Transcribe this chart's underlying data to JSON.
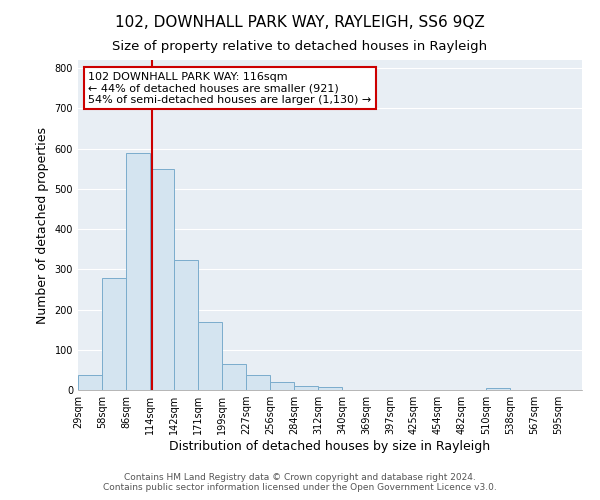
{
  "title": "102, DOWNHALL PARK WAY, RAYLEIGH, SS6 9QZ",
  "subtitle": "Size of property relative to detached houses in Rayleigh",
  "xlabel": "Distribution of detached houses by size in Rayleigh",
  "ylabel": "Number of detached properties",
  "bin_labels": [
    "29sqm",
    "58sqm",
    "86sqm",
    "114sqm",
    "142sqm",
    "171sqm",
    "199sqm",
    "227sqm",
    "256sqm",
    "284sqm",
    "312sqm",
    "340sqm",
    "369sqm",
    "397sqm",
    "425sqm",
    "454sqm",
    "482sqm",
    "510sqm",
    "538sqm",
    "567sqm",
    "595sqm"
  ],
  "bar_heights": [
    38,
    278,
    590,
    550,
    322,
    170,
    65,
    38,
    20,
    10,
    8,
    0,
    0,
    0,
    0,
    0,
    0,
    5,
    0,
    0,
    0
  ],
  "bar_color": "#d4e4f0",
  "bar_edge_color": "#7aaccc",
  "vline_color": "#cc0000",
  "annotation_text": "102 DOWNHALL PARK WAY: 116sqm\n← 44% of detached houses are smaller (921)\n54% of semi-detached houses are larger (1,130) →",
  "annotation_box_color": "#ffffff",
  "annotation_box_edge": "#cc0000",
  "ylim": [
    0,
    820
  ],
  "yticks": [
    0,
    100,
    200,
    300,
    400,
    500,
    600,
    700,
    800
  ],
  "footer_line1": "Contains HM Land Registry data © Crown copyright and database right 2024.",
  "footer_line2": "Contains public sector information licensed under the Open Government Licence v3.0.",
  "background_color": "#ffffff",
  "plot_bg_color": "#e8eef4",
  "grid_color": "#ffffff",
  "title_fontsize": 11,
  "subtitle_fontsize": 9.5,
  "axis_label_fontsize": 9,
  "tick_fontsize": 7,
  "footer_fontsize": 6.5,
  "annot_fontsize": 8
}
